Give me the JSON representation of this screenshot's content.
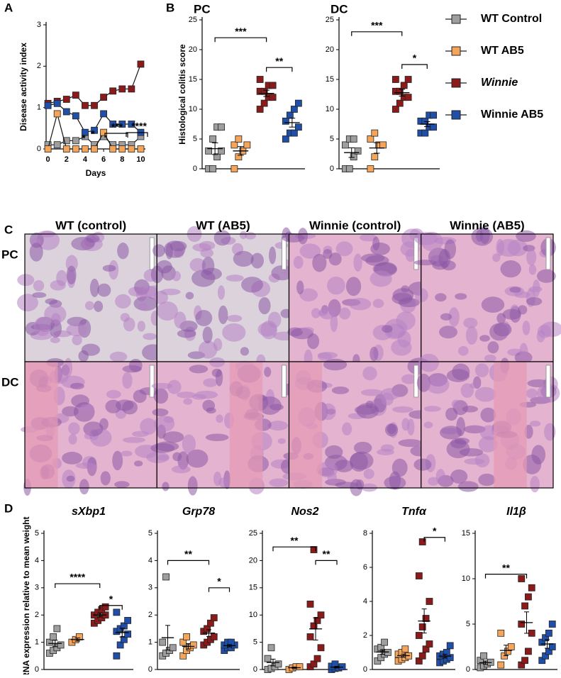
{
  "panel_labels": [
    "A",
    "B",
    "C",
    "D"
  ],
  "histology": {
    "columns": [
      "WT (control)",
      "WT (AB5)",
      "Winnie (control)",
      "Winnie (AB5)"
    ],
    "rows": [
      "PC",
      "DC"
    ]
  },
  "chart_data": [
    {
      "type": "line",
      "ylabel": "Disease activity index",
      "xlabel": "Days",
      "x": [
        0,
        1,
        2,
        3,
        4,
        5,
        6,
        7,
        8,
        9,
        10
      ],
      "xlim": [
        -0.2,
        10.5
      ],
      "xticks": [
        0,
        2,
        4,
        6,
        8,
        10
      ],
      "ylim": [
        0,
        3
      ],
      "yticks": [
        0,
        1,
        2,
        3
      ],
      "series": [
        {
          "color": "#9e9e9e",
          "values": [
            0.1,
            0.1,
            0.2,
            0.2,
            0.3,
            0.1,
            0.3,
            0.1,
            0.1,
            0.1,
            0.3
          ]
        },
        {
          "color": "#f5a55a",
          "values": [
            0,
            0.85,
            0,
            0,
            0,
            0,
            0.4,
            0,
            0,
            0,
            0
          ]
        },
        {
          "color": "#8b1a1a",
          "values": [
            1.1,
            1.15,
            1.2,
            1.3,
            1.05,
            1.05,
            1.25,
            1.4,
            1.45,
            1.45,
            2.05
          ]
        },
        {
          "color": "#1f4fa8",
          "values": [
            1.05,
            1.1,
            0.9,
            0.8,
            0.4,
            0.45,
            0.85,
            0.6,
            0.6,
            0.6,
            0.4
          ]
        }
      ],
      "annotations": [
        "*",
        "*",
        "***",
        "****"
      ]
    },
    {
      "type": "strip",
      "title": "PC",
      "ylabel": "Histological colitis score",
      "ylim": [
        0,
        25
      ],
      "yticks": [
        0,
        5,
        10,
        15,
        20,
        25
      ],
      "series": [
        {
          "name": "WT Control",
          "color": "#9e9e9e",
          "values": [
            0,
            0,
            2,
            3,
            3,
            5,
            7,
            7
          ]
        },
        {
          "name": "WT AB5",
          "color": "#f5a55a",
          "values": [
            0,
            2,
            3,
            4,
            4,
            5
          ]
        },
        {
          "name": "Winnie",
          "color": "#8b1a1a",
          "values": [
            10,
            11,
            12,
            12,
            13,
            13,
            14,
            14,
            15
          ]
        },
        {
          "name": "Winnie AB5",
          "color": "#1f4fa8",
          "values": [
            5,
            6,
            6,
            7,
            8,
            9,
            10,
            11
          ]
        }
      ],
      "annotations": [
        "***",
        "**"
      ]
    },
    {
      "type": "strip",
      "title": "DC",
      "ylim": [
        0,
        25
      ],
      "yticks": [
        0,
        5,
        10,
        15,
        20,
        25
      ],
      "series": [
        {
          "color": "#9e9e9e",
          "values": [
            0,
            0,
            2,
            3,
            4,
            5,
            5
          ]
        },
        {
          "color": "#f5a55a",
          "values": [
            0,
            2,
            4,
            4,
            5,
            6
          ]
        },
        {
          "color": "#8b1a1a",
          "values": [
            10,
            11,
            12,
            12,
            13,
            13,
            14,
            15,
            15
          ]
        },
        {
          "color": "#1f4fa8",
          "values": [
            6,
            6,
            7,
            7,
            8,
            8,
            9,
            9
          ]
        }
      ],
      "annotations": [
        "***",
        "*"
      ]
    },
    {
      "type": "strip",
      "title": "sXbp1",
      "ylabel": "mRNA expression relative to mean weight",
      "ylim": [
        0,
        5
      ],
      "yticks": [
        0,
        1,
        2,
        3,
        4,
        5
      ],
      "series": [
        {
          "color": "#9e9e9e",
          "values": [
            0.6,
            0.7,
            0.8,
            0.9,
            1.0,
            1.2,
            1.5
          ]
        },
        {
          "color": "#f5a55a",
          "values": [
            1.0,
            1.1,
            1.2
          ]
        },
        {
          "color": "#8b1a1a",
          "values": [
            1.7,
            1.8,
            1.9,
            2.0,
            2.0,
            2.1,
            2.2,
            2.3
          ]
        },
        {
          "color": "#1f4fa8",
          "values": [
            0.5,
            0.9,
            1.1,
            1.3,
            1.4,
            1.5,
            1.6,
            1.8,
            2.1
          ]
        }
      ],
      "annotations": [
        "****",
        "*"
      ]
    },
    {
      "type": "strip",
      "title": "Grp78",
      "ylim": [
        0,
        5
      ],
      "yticks": [
        0,
        1,
        2,
        3,
        4,
        5
      ],
      "series": [
        {
          "color": "#9e9e9e",
          "values": [
            0.5,
            0.6,
            0.7,
            0.8,
            1.0,
            3.4
          ]
        },
        {
          "color": "#f5a55a",
          "values": [
            0.5,
            0.7,
            0.8,
            0.9,
            1.0,
            1.2
          ]
        },
        {
          "color": "#8b1a1a",
          "values": [
            0.9,
            1.0,
            1.1,
            1.2,
            1.4,
            1.5,
            1.7,
            1.9
          ]
        },
        {
          "color": "#1f4fa8",
          "values": [
            0.7,
            0.8,
            0.8,
            0.9,
            0.9,
            1.0,
            1.0
          ]
        }
      ],
      "annotations": [
        "**",
        "*"
      ]
    },
    {
      "type": "strip",
      "title": "Nos2",
      "ylim": [
        0,
        25
      ],
      "yticks": [
        0,
        5,
        10,
        15,
        20,
        25
      ],
      "series": [
        {
          "color": "#9e9e9e",
          "values": [
            0,
            0.2,
            0.5,
            1,
            2,
            4
          ]
        },
        {
          "color": "#f5a55a",
          "values": [
            0,
            0.3,
            0.5,
            0.5
          ]
        },
        {
          "color": "#8b1a1a",
          "values": [
            0.5,
            1,
            2,
            4,
            6,
            8,
            9,
            10,
            12,
            22
          ]
        },
        {
          "color": "#1f4fa8",
          "values": [
            0,
            0.2,
            0.3,
            0.5,
            0.6,
            1
          ]
        }
      ],
      "annotations": [
        "**",
        "**"
      ]
    },
    {
      "type": "strip",
      "title": "Tnfα",
      "ylim": [
        0,
        8
      ],
      "yticks": [
        0,
        2,
        4,
        6,
        8
      ],
      "series": [
        {
          "color": "#9e9e9e",
          "values": [
            0.5,
            0.7,
            0.9,
            1.0,
            1.2,
            1.3,
            1.6
          ]
        },
        {
          "color": "#f5a55a",
          "values": [
            0.5,
            0.6,
            0.7,
            0.8,
            0.9,
            1.0,
            1.2
          ]
        },
        {
          "color": "#8b1a1a",
          "values": [
            0.5,
            0.8,
            1.2,
            1.5,
            2.0,
            2.5,
            3.0,
            4.0,
            5.5,
            7.5
          ]
        },
        {
          "color": "#1f4fa8",
          "values": [
            0.4,
            0.5,
            0.6,
            0.7,
            0.8,
            0.9,
            1.0,
            1.4
          ]
        }
      ],
      "annotations": [
        "*"
      ]
    },
    {
      "type": "strip",
      "title": "Il1β",
      "ylim": [
        0,
        15
      ],
      "yticks": [
        0,
        5,
        10,
        15
      ],
      "series": [
        {
          "color": "#9e9e9e",
          "values": [
            0.2,
            0.4,
            0.6,
            0.8,
            1,
            1.5
          ]
        },
        {
          "color": "#f5a55a",
          "values": [
            0.5,
            1.5,
            2,
            2.5,
            4
          ]
        },
        {
          "color": "#8b1a1a",
          "values": [
            0.5,
            1,
            2,
            4,
            5,
            7,
            8,
            9,
            10
          ]
        },
        {
          "color": "#1f4fa8",
          "values": [
            1,
            1.5,
            2,
            2.5,
            3,
            3.5,
            4,
            5
          ]
        }
      ],
      "annotations": [
        "**"
      ]
    }
  ]
}
